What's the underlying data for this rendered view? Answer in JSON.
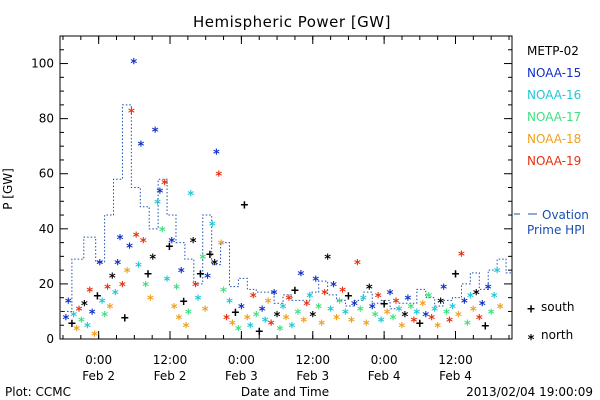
{
  "chart_data": {
    "type": "scatter",
    "title": "Hemispheric Power [GW]",
    "ylabel": "P [GW]",
    "xlabel": "Date and Time",
    "ylim": [
      0,
      110
    ],
    "yticks": [
      0,
      20,
      40,
      60,
      80,
      100
    ],
    "x_unit": "hours since Feb 1 17:30",
    "xlim": [
      0,
      76
    ],
    "xticks": [
      {
        "x": 6.5,
        "time": "0:00",
        "date": "Feb 2"
      },
      {
        "x": 18.5,
        "time": "12:00",
        "date": "Feb 2"
      },
      {
        "x": 30.5,
        "time": "0:00",
        "date": "Feb 3"
      },
      {
        "x": 42.5,
        "time": "12:00",
        "date": "Feb 3"
      },
      {
        "x": 54.5,
        "time": "0:00",
        "date": "Feb 4"
      },
      {
        "x": 66.5,
        "time": "12:00",
        "date": "Feb 4"
      }
    ],
    "legend": {
      "series": [
        {
          "name": "METP-02",
          "color": "#000000"
        },
        {
          "name": "NOAA-15",
          "color": "#1030c8"
        },
        {
          "name": "NOAA-16",
          "color": "#20c8d8"
        },
        {
          "name": "NOAA-17",
          "color": "#40e080"
        },
        {
          "name": "NOAA-18",
          "color": "#f0a020"
        },
        {
          "name": "NOAA-19",
          "color": "#e83010"
        }
      ],
      "ovation": {
        "line1": "Ovation",
        "line2": "Prime HPI",
        "color": "#1a4fb0"
      },
      "markers": [
        {
          "symbol": "+",
          "label": "south"
        },
        {
          "symbol": "*",
          "label": "north"
        }
      ]
    },
    "ovation_step": {
      "x": [
        0,
        2,
        4,
        6,
        7.5,
        9,
        10.5,
        12,
        13.5,
        15,
        16.5,
        18,
        19.5,
        21,
        22.5,
        24,
        25.5,
        27,
        28.5,
        30,
        31.5,
        33,
        34.5,
        36,
        37.5,
        39,
        40.5,
        42,
        43.5,
        45,
        46.5,
        48,
        49.5,
        51,
        52.5,
        54,
        55.5,
        57,
        58.5,
        60,
        61.5,
        63,
        64.5,
        66,
        67.5,
        69,
        70.5,
        72,
        73.5,
        75,
        76
      ],
      "y": [
        10,
        29,
        37,
        28,
        45,
        58,
        85,
        55,
        48,
        40,
        58,
        45,
        35,
        29,
        20,
        45,
        27,
        35,
        19,
        22,
        18,
        17,
        17,
        13,
        16,
        14,
        14,
        17,
        21,
        16,
        14,
        12,
        14,
        17,
        13,
        14,
        11,
        13,
        13,
        18,
        15,
        12,
        14,
        15,
        20,
        24,
        18,
        25,
        29,
        24,
        24
      ]
    },
    "points": [
      {
        "x": 1.0,
        "y": 8,
        "sat": "NOAA-15",
        "m": "*"
      },
      {
        "x": 1.4,
        "y": 14,
        "sat": "NOAA-15",
        "m": "*"
      },
      {
        "x": 2.0,
        "y": 6,
        "sat": "METP-02",
        "m": "+"
      },
      {
        "x": 2.3,
        "y": 9,
        "sat": "NOAA-16",
        "m": "*"
      },
      {
        "x": 2.8,
        "y": 4,
        "sat": "NOAA-18",
        "m": "*"
      },
      {
        "x": 3.2,
        "y": 11,
        "sat": "NOAA-19",
        "m": "*"
      },
      {
        "x": 3.6,
        "y": 7,
        "sat": "NOAA-17",
        "m": "*"
      },
      {
        "x": 4.1,
        "y": 13,
        "sat": "METP-02",
        "m": "*"
      },
      {
        "x": 4.6,
        "y": 5,
        "sat": "NOAA-16",
        "m": "*"
      },
      {
        "x": 5.0,
        "y": 18,
        "sat": "NOAA-19",
        "m": "*"
      },
      {
        "x": 5.4,
        "y": 10,
        "sat": "NOAA-15",
        "m": "*"
      },
      {
        "x": 5.8,
        "y": 2,
        "sat": "NOAA-18",
        "m": "*"
      },
      {
        "x": 6.3,
        "y": 16,
        "sat": "METP-02",
        "m": "+"
      },
      {
        "x": 6.7,
        "y": 28,
        "sat": "NOAA-15",
        "m": "*"
      },
      {
        "x": 7.1,
        "y": 14,
        "sat": "NOAA-16",
        "m": "*"
      },
      {
        "x": 7.5,
        "y": 9,
        "sat": "NOAA-17",
        "m": "*"
      },
      {
        "x": 8.0,
        "y": 19,
        "sat": "NOAA-19",
        "m": "*"
      },
      {
        "x": 8.4,
        "y": 12,
        "sat": "NOAA-18",
        "m": "*"
      },
      {
        "x": 8.8,
        "y": 23,
        "sat": "METP-02",
        "m": "*"
      },
      {
        "x": 9.3,
        "y": 17,
        "sat": "NOAA-16",
        "m": "*"
      },
      {
        "x": 9.7,
        "y": 28,
        "sat": "NOAA-15",
        "m": "*"
      },
      {
        "x": 10.1,
        "y": 37,
        "sat": "NOAA-15",
        "m": "*"
      },
      {
        "x": 10.5,
        "y": 20,
        "sat": "NOAA-19",
        "m": "*"
      },
      {
        "x": 10.9,
        "y": 8,
        "sat": "METP-02",
        "m": "+"
      },
      {
        "x": 11.3,
        "y": 25,
        "sat": "NOAA-18",
        "m": "*"
      },
      {
        "x": 11.7,
        "y": 34,
        "sat": "NOAA-15",
        "m": "*"
      },
      {
        "x": 12.0,
        "y": 83,
        "sat": "NOAA-19",
        "m": "*"
      },
      {
        "x": 12.4,
        "y": 101,
        "sat": "NOAA-15",
        "m": "*"
      },
      {
        "x": 12.8,
        "y": 38,
        "sat": "NOAA-19",
        "m": "*"
      },
      {
        "x": 13.2,
        "y": 27,
        "sat": "NOAA-16",
        "m": "*"
      },
      {
        "x": 13.6,
        "y": 71,
        "sat": "NOAA-15",
        "m": "*"
      },
      {
        "x": 14.0,
        "y": 36,
        "sat": "NOAA-19",
        "m": "*"
      },
      {
        "x": 14.4,
        "y": 20,
        "sat": "NOAA-17",
        "m": "*"
      },
      {
        "x": 14.8,
        "y": 24,
        "sat": "METP-02",
        "m": "+"
      },
      {
        "x": 15.2,
        "y": 15,
        "sat": "NOAA-18",
        "m": "*"
      },
      {
        "x": 15.6,
        "y": 30,
        "sat": "METP-02",
        "m": "*"
      },
      {
        "x": 16.0,
        "y": 76,
        "sat": "NOAA-15",
        "m": "*"
      },
      {
        "x": 16.4,
        "y": 50,
        "sat": "NOAA-16",
        "m": "*"
      },
      {
        "x": 16.8,
        "y": 54,
        "sat": "NOAA-15",
        "m": "*"
      },
      {
        "x": 17.2,
        "y": 40,
        "sat": "NOAA-17",
        "m": "*"
      },
      {
        "x": 17.6,
        "y": 57,
        "sat": "NOAA-19",
        "m": "*"
      },
      {
        "x": 18.0,
        "y": 22,
        "sat": "NOAA-16",
        "m": "*"
      },
      {
        "x": 18.4,
        "y": 34,
        "sat": "METP-02",
        "m": "+"
      },
      {
        "x": 18.8,
        "y": 36,
        "sat": "NOAA-15",
        "m": "*"
      },
      {
        "x": 19.2,
        "y": 12,
        "sat": "NOAA-18",
        "m": "*"
      },
      {
        "x": 19.6,
        "y": 19,
        "sat": "NOAA-17",
        "m": "*"
      },
      {
        "x": 20.0,
        "y": 8,
        "sat": "NOAA-18",
        "m": "*"
      },
      {
        "x": 20.4,
        "y": 25,
        "sat": "NOAA-15",
        "m": "*"
      },
      {
        "x": 20.8,
        "y": 14,
        "sat": "METP-02",
        "m": "+"
      },
      {
        "x": 21.2,
        "y": 5,
        "sat": "NOAA-18",
        "m": "*"
      },
      {
        "x": 21.6,
        "y": 10,
        "sat": "NOAA-17",
        "m": "*"
      },
      {
        "x": 22.0,
        "y": 53,
        "sat": "NOAA-16",
        "m": "*"
      },
      {
        "x": 22.4,
        "y": 36,
        "sat": "METP-02",
        "m": "*"
      },
      {
        "x": 22.8,
        "y": 20,
        "sat": "NOAA-19",
        "m": "*"
      },
      {
        "x": 23.2,
        "y": 15,
        "sat": "NOAA-16",
        "m": "*"
      },
      {
        "x": 23.6,
        "y": 24,
        "sat": "METP-02",
        "m": "+"
      },
      {
        "x": 24.0,
        "y": 30,
        "sat": "NOAA-17",
        "m": "*"
      },
      {
        "x": 24.4,
        "y": 11,
        "sat": "NOAA-18",
        "m": "*"
      },
      {
        "x": 24.8,
        "y": 23,
        "sat": "NOAA-15",
        "m": "*"
      },
      {
        "x": 25.2,
        "y": 31,
        "sat": "METP-02",
        "m": "+"
      },
      {
        "x": 25.6,
        "y": 42,
        "sat": "NOAA-16",
        "m": "*"
      },
      {
        "x": 26.0,
        "y": 28,
        "sat": "METP-02",
        "m": "*"
      },
      {
        "x": 26.3,
        "y": 68,
        "sat": "NOAA-15",
        "m": "*"
      },
      {
        "x": 26.7,
        "y": 60,
        "sat": "NOAA-19",
        "m": "*"
      },
      {
        "x": 27.1,
        "y": 35,
        "sat": "NOAA-18",
        "m": "*"
      },
      {
        "x": 27.5,
        "y": 18,
        "sat": "NOAA-17",
        "m": "*"
      },
      {
        "x": 28.0,
        "y": 8,
        "sat": "NOAA-19",
        "m": "*"
      },
      {
        "x": 28.5,
        "y": 14,
        "sat": "NOAA-16",
        "m": "*"
      },
      {
        "x": 29.0,
        "y": 6,
        "sat": "NOAA-18",
        "m": "*"
      },
      {
        "x": 29.5,
        "y": 10,
        "sat": "METP-02",
        "m": "+"
      },
      {
        "x": 30.0,
        "y": 4,
        "sat": "NOAA-17",
        "m": "*"
      },
      {
        "x": 30.5,
        "y": 12,
        "sat": "NOAA-15",
        "m": "*"
      },
      {
        "x": 31.0,
        "y": 49,
        "sat": "METP-02",
        "m": "+"
      },
      {
        "x": 31.5,
        "y": 8,
        "sat": "NOAA-18",
        "m": "*"
      },
      {
        "x": 32.0,
        "y": 5,
        "sat": "NOAA-16",
        "m": "*"
      },
      {
        "x": 32.5,
        "y": 16,
        "sat": "NOAA-19",
        "m": "*"
      },
      {
        "x": 33.0,
        "y": 9,
        "sat": "NOAA-17",
        "m": "*"
      },
      {
        "x": 33.5,
        "y": 3,
        "sat": "METP-02",
        "m": "+"
      },
      {
        "x": 34.0,
        "y": 11,
        "sat": "NOAA-15",
        "m": "*"
      },
      {
        "x": 34.5,
        "y": 7,
        "sat": "NOAA-16",
        "m": "*"
      },
      {
        "x": 35.0,
        "y": 14,
        "sat": "NOAA-18",
        "m": "*"
      },
      {
        "x": 35.5,
        "y": 6,
        "sat": "NOAA-19",
        "m": "*"
      },
      {
        "x": 36.0,
        "y": 17,
        "sat": "NOAA-15",
        "m": "*"
      },
      {
        "x": 36.5,
        "y": 9,
        "sat": "METP-02",
        "m": "*"
      },
      {
        "x": 37.0,
        "y": 4,
        "sat": "NOAA-17",
        "m": "*"
      },
      {
        "x": 37.5,
        "y": 12,
        "sat": "NOAA-16",
        "m": "*"
      },
      {
        "x": 38.0,
        "y": 8,
        "sat": "NOAA-18",
        "m": "*"
      },
      {
        "x": 38.5,
        "y": 15,
        "sat": "NOAA-19",
        "m": "*"
      },
      {
        "x": 39.0,
        "y": 5,
        "sat": "NOAA-16",
        "m": "*"
      },
      {
        "x": 39.5,
        "y": 18,
        "sat": "METP-02",
        "m": "+"
      },
      {
        "x": 40.0,
        "y": 10,
        "sat": "NOAA-17",
        "m": "*"
      },
      {
        "x": 40.5,
        "y": 24,
        "sat": "NOAA-15",
        "m": "*"
      },
      {
        "x": 41.0,
        "y": 7,
        "sat": "NOAA-18",
        "m": "*"
      },
      {
        "x": 41.5,
        "y": 13,
        "sat": "NOAA-19",
        "m": "*"
      },
      {
        "x": 42.0,
        "y": 16,
        "sat": "NOAA-16",
        "m": "*"
      },
      {
        "x": 42.5,
        "y": 9,
        "sat": "METP-02",
        "m": "*"
      },
      {
        "x": 43.0,
        "y": 22,
        "sat": "NOAA-15",
        "m": "*"
      },
      {
        "x": 43.5,
        "y": 12,
        "sat": "NOAA-17",
        "m": "*"
      },
      {
        "x": 44.0,
        "y": 6,
        "sat": "NOAA-18",
        "m": "*"
      },
      {
        "x": 44.5,
        "y": 17,
        "sat": "NOAA-19",
        "m": "*"
      },
      {
        "x": 45.0,
        "y": 30,
        "sat": "METP-02",
        "m": "*"
      },
      {
        "x": 45.5,
        "y": 11,
        "sat": "NOAA-16",
        "m": "*"
      },
      {
        "x": 46.0,
        "y": 20,
        "sat": "NOAA-15",
        "m": "*"
      },
      {
        "x": 46.5,
        "y": 8,
        "sat": "NOAA-18",
        "m": "*"
      },
      {
        "x": 47.0,
        "y": 14,
        "sat": "NOAA-17",
        "m": "*"
      },
      {
        "x": 47.5,
        "y": 18,
        "sat": "NOAA-19",
        "m": "*"
      },
      {
        "x": 48.0,
        "y": 10,
        "sat": "NOAA-16",
        "m": "*"
      },
      {
        "x": 48.5,
        "y": 16,
        "sat": "METP-02",
        "m": "+"
      },
      {
        "x": 49.0,
        "y": 7,
        "sat": "NOAA-18",
        "m": "*"
      },
      {
        "x": 49.5,
        "y": 13,
        "sat": "NOAA-15",
        "m": "*"
      },
      {
        "x": 50.0,
        "y": 28,
        "sat": "NOAA-19",
        "m": "*"
      },
      {
        "x": 50.5,
        "y": 11,
        "sat": "NOAA-17",
        "m": "*"
      },
      {
        "x": 51.0,
        "y": 15,
        "sat": "NOAA-16",
        "m": "*"
      },
      {
        "x": 51.5,
        "y": 6,
        "sat": "NOAA-18",
        "m": "*"
      },
      {
        "x": 52.0,
        "y": 19,
        "sat": "METP-02",
        "m": "*"
      },
      {
        "x": 52.5,
        "y": 12,
        "sat": "NOAA-15",
        "m": "*"
      },
      {
        "x": 53.0,
        "y": 9,
        "sat": "NOAA-17",
        "m": "*"
      },
      {
        "x": 53.5,
        "y": 16,
        "sat": "NOAA-19",
        "m": "*"
      },
      {
        "x": 54.0,
        "y": 7,
        "sat": "NOAA-16",
        "m": "*"
      },
      {
        "x": 54.5,
        "y": 13,
        "sat": "METP-02",
        "m": "+"
      },
      {
        "x": 55.0,
        "y": 10,
        "sat": "NOAA-18",
        "m": "*"
      },
      {
        "x": 55.5,
        "y": 17,
        "sat": "NOAA-15",
        "m": "*"
      },
      {
        "x": 56.0,
        "y": 8,
        "sat": "NOAA-17",
        "m": "*"
      },
      {
        "x": 56.5,
        "y": 14,
        "sat": "NOAA-19",
        "m": "*"
      },
      {
        "x": 57.0,
        "y": 11,
        "sat": "NOAA-16",
        "m": "*"
      },
      {
        "x": 57.5,
        "y": 5,
        "sat": "NOAA-18",
        "m": "*"
      },
      {
        "x": 58.0,
        "y": 9,
        "sat": "METP-02",
        "m": "*"
      },
      {
        "x": 58.5,
        "y": 15,
        "sat": "NOAA-15",
        "m": "*"
      },
      {
        "x": 59.0,
        "y": 12,
        "sat": "NOAA-17",
        "m": "*"
      },
      {
        "x": 59.5,
        "y": 7,
        "sat": "NOAA-19",
        "m": "*"
      },
      {
        "x": 60.0,
        "y": 10,
        "sat": "NOAA-16",
        "m": "*"
      },
      {
        "x": 60.5,
        "y": 6,
        "sat": "METP-02",
        "m": "+"
      },
      {
        "x": 61.0,
        "y": 13,
        "sat": "NOAA-18",
        "m": "*"
      },
      {
        "x": 61.5,
        "y": 9,
        "sat": "NOAA-15",
        "m": "*"
      },
      {
        "x": 62.0,
        "y": 16,
        "sat": "NOAA-17",
        "m": "*"
      },
      {
        "x": 62.5,
        "y": 8,
        "sat": "NOAA-19",
        "m": "*"
      },
      {
        "x": 63.0,
        "y": 11,
        "sat": "NOAA-16",
        "m": "*"
      },
      {
        "x": 63.5,
        "y": 5,
        "sat": "NOAA-18",
        "m": "*"
      },
      {
        "x": 64.0,
        "y": 14,
        "sat": "METP-02",
        "m": "*"
      },
      {
        "x": 64.5,
        "y": 19,
        "sat": "NOAA-15",
        "m": "*"
      },
      {
        "x": 65.0,
        "y": 10,
        "sat": "NOAA-17",
        "m": "*"
      },
      {
        "x": 65.5,
        "y": 7,
        "sat": "NOAA-19",
        "m": "*"
      },
      {
        "x": 66.0,
        "y": 12,
        "sat": "NOAA-16",
        "m": "*"
      },
      {
        "x": 66.5,
        "y": 24,
        "sat": "METP-02",
        "m": "+"
      },
      {
        "x": 67.0,
        "y": 9,
        "sat": "NOAA-18",
        "m": "*"
      },
      {
        "x": 67.5,
        "y": 31,
        "sat": "NOAA-19",
        "m": "*"
      },
      {
        "x": 68.0,
        "y": 14,
        "sat": "NOAA-15",
        "m": "*"
      },
      {
        "x": 68.5,
        "y": 6,
        "sat": "NOAA-17",
        "m": "*"
      },
      {
        "x": 69.0,
        "y": 16,
        "sat": "NOAA-16",
        "m": "*"
      },
      {
        "x": 69.5,
        "y": 11,
        "sat": "NOAA-18",
        "m": "*"
      },
      {
        "x": 70.0,
        "y": 17,
        "sat": "METP-02",
        "m": "*"
      },
      {
        "x": 70.5,
        "y": 8,
        "sat": "NOAA-19",
        "m": "*"
      },
      {
        "x": 71.0,
        "y": 13,
        "sat": "NOAA-15",
        "m": "*"
      },
      {
        "x": 71.5,
        "y": 5,
        "sat": "METP-02",
        "m": "+"
      },
      {
        "x": 72.0,
        "y": 19,
        "sat": "NOAA-15",
        "m": "*"
      },
      {
        "x": 72.5,
        "y": 10,
        "sat": "NOAA-17",
        "m": "*"
      },
      {
        "x": 73.0,
        "y": 16,
        "sat": "NOAA-16",
        "m": "*"
      },
      {
        "x": 73.5,
        "y": 25,
        "sat": "NOAA-16",
        "m": "*"
      },
      {
        "x": 74.0,
        "y": 12,
        "sat": "NOAA-18",
        "m": "*"
      }
    ]
  },
  "footer": {
    "left": "Plot: CCMC",
    "right": "2013/02/04 19:00:09"
  }
}
